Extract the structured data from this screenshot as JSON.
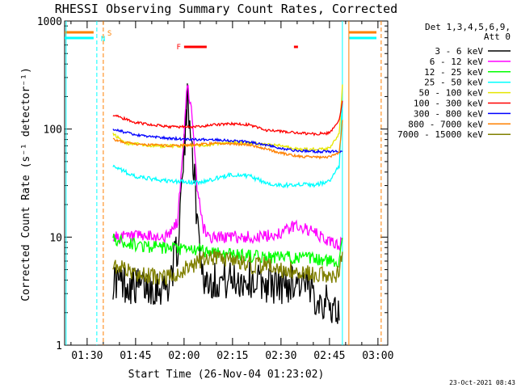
{
  "chart_data": {
    "type": "line",
    "title": "RHESSI Observing Summary Count Rates, Corrected",
    "xlabel": "Start Time (26-Nov-04 01:23:02)",
    "ylabel": "Corrected Count Rate (s⁻¹ detector⁻¹)",
    "x_ticks": [
      "01:30",
      "01:45",
      "02:00",
      "02:15",
      "02:30",
      "02:45",
      "03:00"
    ],
    "y_ticks": [
      "1",
      "10",
      "100",
      "1000"
    ],
    "ylim": [
      1,
      1000
    ],
    "xlim": [
      "01:23:02",
      "03:03:02"
    ],
    "y_scale": "log",
    "grid": false,
    "timestamp": "23-Oct-2021 08:43",
    "legend": {
      "placement": "top-right",
      "header": [
        "Det 1,3,4,5,6,9,",
        "Att 0"
      ],
      "entries": [
        {
          "name": "3 - 6 keV",
          "color": "#000000"
        },
        {
          "name": "6 - 12 keV",
          "color": "#ff00ff"
        },
        {
          "name": "12 - 25 keV",
          "color": "#00ff00"
        },
        {
          "name": "25 - 50 keV",
          "color": "#00ffff"
        },
        {
          "name": "50 - 100 keV",
          "color": "#e6e600"
        },
        {
          "name": "100 - 300 keV",
          "color": "#ff0000"
        },
        {
          "name": "300 - 800 keV",
          "color": "#0000ff"
        },
        {
          "name": "800 - 7000 keV",
          "color": "#ff8000"
        },
        {
          "name": "7000 - 15000 keV",
          "color": "#808000"
        }
      ]
    },
    "markers": [
      {
        "label": "S",
        "time": "01:35",
        "color": "#ff8000"
      },
      {
        "label": "N",
        "time": "01:33",
        "color": "#00ffff"
      },
      {
        "label": "F",
        "time_start": "02:00",
        "time_end": "02:07",
        "color": "#ff0000"
      },
      {
        "label": "",
        "time_start": "02:34",
        "time_end": "02:36",
        "color": "#ff0000"
      }
    ],
    "series": [
      {
        "name": "3 - 6 keV",
        "color": "#000000",
        "times": [
          "01:38",
          "01:45",
          "01:55",
          "01:58",
          "02:00",
          "02:01",
          "02:02",
          "02:04",
          "02:06",
          "02:10",
          "02:20",
          "02:30",
          "02:35",
          "02:40",
          "02:45",
          "02:48"
        ],
        "values": [
          4,
          3.5,
          3.5,
          8,
          60,
          180,
          120,
          15,
          4,
          4,
          4,
          3.5,
          4,
          3,
          2.3,
          2
        ]
      },
      {
        "name": "6 - 12 keV",
        "color": "#ff00ff",
        "times": [
          "01:38",
          "01:45",
          "01:55",
          "01:58",
          "02:00",
          "02:01",
          "02:02",
          "02:04",
          "02:06",
          "02:08",
          "02:15",
          "02:25",
          "02:30",
          "02:35",
          "02:40",
          "02:45",
          "02:48",
          "02:49"
        ],
        "values": [
          10,
          10,
          10,
          14,
          90,
          260,
          180,
          30,
          12,
          10,
          10,
          10,
          11,
          13,
          11,
          9,
          8.5,
          9
        ]
      },
      {
        "name": "12 - 25 keV",
        "color": "#00ff00",
        "times": [
          "01:38",
          "01:45",
          "01:55",
          "02:05",
          "02:15",
          "02:25",
          "02:35",
          "02:45",
          "02:48",
          "02:49"
        ],
        "values": [
          9.5,
          8.5,
          7.8,
          7.5,
          7,
          6.5,
          6.5,
          6,
          6,
          10
        ]
      },
      {
        "name": "25 - 50 keV",
        "color": "#00ffff",
        "times": [
          "01:38",
          "01:45",
          "01:55",
          "02:05",
          "02:10",
          "02:15",
          "02:20",
          "02:25",
          "02:30",
          "02:35",
          "02:40",
          "02:45",
          "02:48",
          "02:49"
        ],
        "values": [
          46,
          36,
          33,
          32,
          35,
          38,
          37,
          32,
          30,
          31,
          30,
          33,
          45,
          180
        ]
      },
      {
        "name": "50 - 100 keV",
        "color": "#e6e600",
        "times": [
          "01:38",
          "01:42",
          "01:50",
          "02:00",
          "02:10",
          "02:15",
          "02:20",
          "02:25",
          "02:30",
          "02:35",
          "02:40",
          "02:45",
          "02:48",
          "02:49"
        ],
        "values": [
          90,
          74,
          70,
          70,
          72,
          75,
          74,
          72,
          70,
          65,
          65,
          66,
          90,
          250
        ]
      },
      {
        "name": "100 - 300 keV",
        "color": "#ff0000",
        "times": [
          "01:38",
          "01:45",
          "01:55",
          "02:05",
          "02:10",
          "02:15",
          "02:20",
          "02:25",
          "02:30",
          "02:35",
          "02:40",
          "02:45",
          "02:48",
          "02:49"
        ],
        "values": [
          135,
          115,
          105,
          105,
          110,
          112,
          110,
          98,
          95,
          92,
          90,
          92,
          120,
          180
        ]
      },
      {
        "name": "300 - 800 keV",
        "color": "#0000ff",
        "times": [
          "01:38",
          "01:45",
          "01:55",
          "02:05",
          "02:10",
          "02:15",
          "02:20",
          "02:25",
          "02:30",
          "02:35",
          "02:40",
          "02:45",
          "02:48",
          "02:49"
        ],
        "values": [
          100,
          88,
          82,
          80,
          80,
          78,
          76,
          72,
          66,
          63,
          62,
          62,
          62,
          62
        ]
      },
      {
        "name": "800 - 7000 keV",
        "color": "#ff8000",
        "times": [
          "01:38",
          "01:45",
          "01:55",
          "02:05",
          "02:10",
          "02:15",
          "02:20",
          "02:25",
          "02:30",
          "02:35",
          "02:40",
          "02:45",
          "02:48",
          "02:49"
        ],
        "values": [
          80,
          72,
          70,
          72,
          74,
          73,
          72,
          66,
          60,
          56,
          55,
          55,
          60,
          120
        ]
      },
      {
        "name": "7000 - 15000 keV",
        "color": "#808000",
        "times": [
          "01:38",
          "01:45",
          "01:55",
          "02:05",
          "02:10",
          "02:15",
          "02:20",
          "02:25",
          "02:30",
          "02:35",
          "02:40",
          "02:45",
          "02:48",
          "02:49"
        ],
        "values": [
          5.5,
          4.5,
          4.2,
          6,
          6.5,
          6,
          5.5,
          5.5,
          5,
          5,
          4.5,
          4.5,
          4.5,
          7
        ]
      }
    ]
  }
}
